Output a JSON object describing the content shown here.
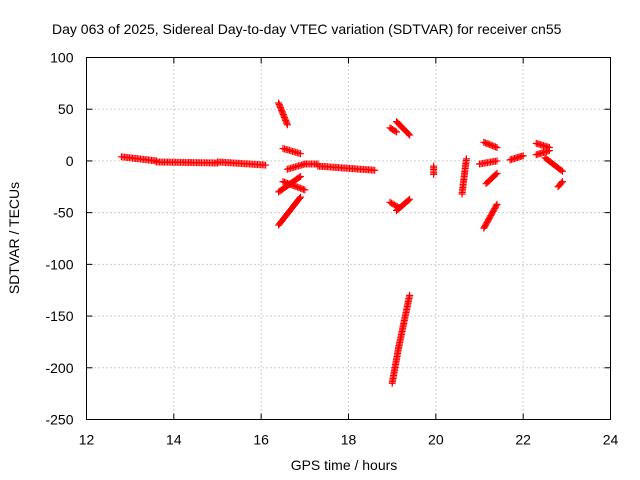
{
  "chart_data": {
    "type": "scatter",
    "title": "Day 063 of 2025, Sidereal Day-to-day VTEC variation (SDTVAR) for receiver cn55",
    "xlabel": "GPS time / hours",
    "ylabel": "SDTVAR / TECUs",
    "xlim": [
      12,
      24
    ],
    "ylim": [
      -250,
      100
    ],
    "xticks": [
      "12",
      "14",
      "16",
      "18",
      "20",
      "22",
      "24"
    ],
    "yticks": [
      "100",
      "50",
      "0",
      "-50",
      "-100",
      "-150",
      "-200",
      "-250"
    ],
    "grid": true,
    "marker": "+",
    "color": "#ff0000",
    "segments": [
      {
        "x0": 12.8,
        "y0": 4,
        "x1": 13.6,
        "y1": 0
      },
      {
        "x0": 13.6,
        "y0": -1,
        "x1": 15.0,
        "y1": -2
      },
      {
        "x0": 15.0,
        "y0": -1,
        "x1": 16.1,
        "y1": -4
      },
      {
        "x0": 16.4,
        "y0": 56,
        "x1": 16.6,
        "y1": 35
      },
      {
        "x0": 16.4,
        "y0": -62,
        "x1": 16.9,
        "y1": -35
      },
      {
        "x0": 16.4,
        "y0": -30,
        "x1": 16.9,
        "y1": -15
      },
      {
        "x0": 16.5,
        "y0": -20,
        "x1": 17.0,
        "y1": -28
      },
      {
        "x0": 16.5,
        "y0": 12,
        "x1": 16.9,
        "y1": 7
      },
      {
        "x0": 16.6,
        "y0": -8,
        "x1": 17.0,
        "y1": -3
      },
      {
        "x0": 17.0,
        "y0": -3,
        "x1": 17.3,
        "y1": -3
      },
      {
        "x0": 17.3,
        "y0": -5,
        "x1": 18.6,
        "y1": -9
      },
      {
        "x0": 19.0,
        "y0": -215,
        "x1": 19.15,
        "y1": -180
      },
      {
        "x0": 19.15,
        "y0": -180,
        "x1": 19.4,
        "y1": -130
      },
      {
        "x0": 18.95,
        "y0": 32,
        "x1": 19.1,
        "y1": 28
      },
      {
        "x0": 19.1,
        "y0": 38,
        "x1": 19.4,
        "y1": 25
      },
      {
        "x0": 18.95,
        "y0": -40,
        "x1": 19.15,
        "y1": -45
      },
      {
        "x0": 19.1,
        "y0": -48,
        "x1": 19.4,
        "y1": -37
      },
      {
        "x0": 19.95,
        "y0": -5,
        "x1": 19.95,
        "y1": -13
      },
      {
        "x0": 20.6,
        "y0": -32,
        "x1": 20.7,
        "y1": 2
      },
      {
        "x0": 21.0,
        "y0": -3,
        "x1": 21.4,
        "y1": 0
      },
      {
        "x0": 21.1,
        "y0": -65,
        "x1": 21.4,
        "y1": -42
      },
      {
        "x0": 21.15,
        "y0": -22,
        "x1": 21.4,
        "y1": -12
      },
      {
        "x0": 21.1,
        "y0": 18,
        "x1": 21.4,
        "y1": 13
      },
      {
        "x0": 21.7,
        "y0": 1,
        "x1": 22.0,
        "y1": 5
      },
      {
        "x0": 22.3,
        "y0": 6,
        "x1": 22.6,
        "y1": 10
      },
      {
        "x0": 22.3,
        "y0": 17,
        "x1": 22.6,
        "y1": 13
      },
      {
        "x0": 22.5,
        "y0": 3,
        "x1": 22.9,
        "y1": -10
      },
      {
        "x0": 22.8,
        "y0": -25,
        "x1": 22.9,
        "y1": -20
      }
    ]
  }
}
